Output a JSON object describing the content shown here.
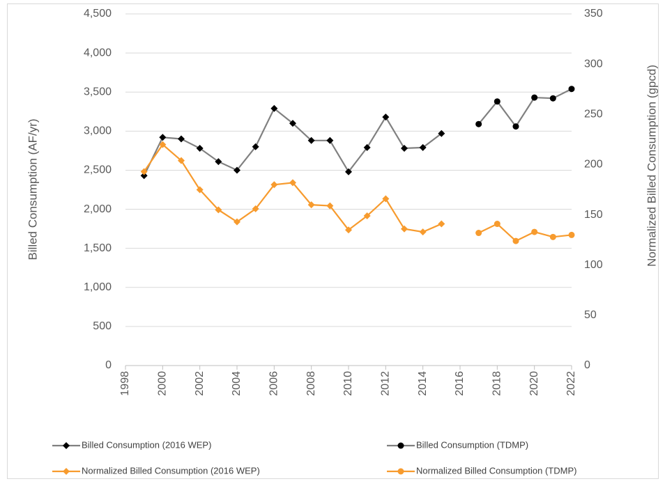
{
  "chart_data": {
    "type": "line",
    "y_label": "Billed Consumption (AF/yr)",
    "y2_label": "Normalized Billed Consumption (gpcd)",
    "xlim": [
      1998,
      2022
    ],
    "xticks": [
      1998,
      2000,
      2002,
      2004,
      2006,
      2008,
      2010,
      2012,
      2014,
      2016,
      2018,
      2020,
      2022
    ],
    "ylim": [
      0,
      4500
    ],
    "yticks": [
      0,
      {
        "value": 500,
        "label": "500"
      },
      {
        "value": 1000,
        "label": "1,000"
      },
      {
        "value": 1500,
        "label": "1,500"
      },
      {
        "value": 2000,
        "label": "2,000"
      },
      {
        "value": 2500,
        "label": "2,500"
      },
      {
        "value": 3000,
        "label": "3,000"
      },
      {
        "value": 3500,
        "label": "3,500"
      },
      {
        "value": 4000,
        "label": "4,000"
      },
      {
        "value": 4500,
        "label": "4,500"
      }
    ],
    "y2lim": [
      0,
      350
    ],
    "y2ticks": [
      0,
      50,
      100,
      150,
      200,
      250,
      300,
      350
    ],
    "grid": true,
    "legend": "bottom",
    "series": [
      {
        "name": "Billed Consumption (2016 WEP)",
        "color": "#000000",
        "line_color": "#808080",
        "marker": "diamond",
        "x": [
          1999,
          2000,
          2001,
          2002,
          2003,
          2004,
          2005,
          2006,
          2007,
          2008,
          2009,
          2010,
          2011,
          2012,
          2013,
          2014,
          2015
        ],
        "values": [
          2430,
          2920,
          2900,
          2780,
          2610,
          2500,
          2800,
          3290,
          3100,
          2880,
          2880,
          2480,
          2790,
          3180,
          2780,
          2790,
          2970
        ]
      },
      {
        "name": "Billed Consumption (TDMP)",
        "color": "#000000",
        "line_color": "#808080",
        "marker": "circle",
        "x": [
          2017,
          2018,
          2019,
          2020,
          2021,
          2022
        ],
        "values": [
          3090,
          3380,
          3060,
          3430,
          3420,
          3540
        ]
      },
      {
        "name": "Normalized Billed Consumption (2016 WEP)",
        "color": "#f79b2e",
        "line_color": "#f79b2e",
        "marker": "diamond",
        "axis": "y2",
        "x": [
          1999,
          2000,
          2001,
          2002,
          2003,
          2004,
          2005,
          2006,
          2007,
          2008,
          2009,
          2010,
          2011,
          2012,
          2013,
          2014,
          2015
        ],
        "values": [
          193,
          220,
          204,
          175,
          155,
          143,
          156,
          180,
          182,
          160,
          159,
          135,
          149,
          166,
          136,
          133,
          141
        ]
      },
      {
        "name": "Normalized Billed Consumption (TDMP)",
        "color": "#f79b2e",
        "line_color": "#f79b2e",
        "marker": "circle",
        "axis": "y2",
        "x": [
          2017,
          2018,
          2019,
          2020,
          2021,
          2022
        ],
        "values": [
          132,
          141,
          124,
          133,
          128,
          130
        ]
      }
    ]
  }
}
